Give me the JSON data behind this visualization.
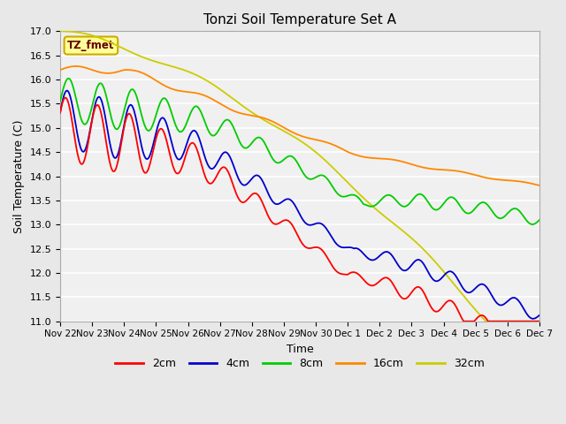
{
  "title": "Tonzi Soil Temperature Set A",
  "xlabel": "Time",
  "ylabel": "Soil Temperature (C)",
  "ylim": [
    11.0,
    17.0
  ],
  "yticks": [
    11.0,
    11.5,
    12.0,
    12.5,
    13.0,
    13.5,
    14.0,
    14.5,
    15.0,
    15.5,
    16.0,
    16.5,
    17.0
  ],
  "xtick_labels": [
    "Nov 22",
    "Nov 23",
    "Nov 24",
    "Nov 25",
    "Nov 26",
    "Nov 27",
    "Nov 28",
    "Nov 29",
    "Nov 30",
    "Dec 1",
    "Dec 2",
    "Dec 3",
    "Dec 4",
    "Dec 5",
    "Dec 6",
    "Dec 7"
  ],
  "line_colors": {
    "2cm": "#ff0000",
    "4cm": "#0000cc",
    "8cm": "#00cc00",
    "16cm": "#ff8800",
    "32cm": "#cccc00"
  },
  "legend_label": "TZ_fmet",
  "legend_box_color": "#ffff99",
  "legend_box_edge": "#ccaa00",
  "background_color": "#e8e8e8",
  "plot_bg_color": "#f0f0f0",
  "grid_color": "#ffffff",
  "title_fontsize": 11,
  "axis_label_fontsize": 9
}
